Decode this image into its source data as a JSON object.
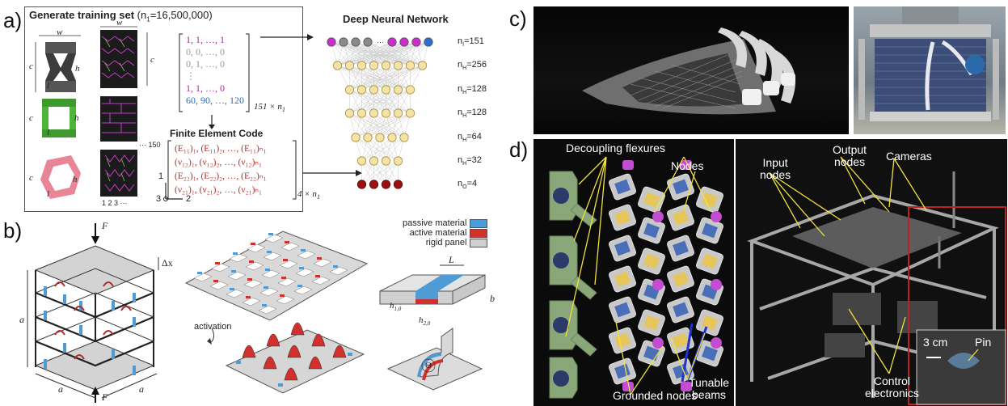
{
  "panel_labels": {
    "a": "a)",
    "b": "b)",
    "c": "c)",
    "d": "d)"
  },
  "panel_a": {
    "title": "Generate training set",
    "title_param": "(n",
    "title_param_sub": "1",
    "title_param_val": "=16,500,000)",
    "dim_w": "w",
    "dim_c": "c",
    "dim_h": "h",
    "dim_l": "l",
    "count_150": "··· 150",
    "axis_1": "1",
    "axis_2": "2",
    "axis_3": "3",
    "axis_123": "1 2 3 ···",
    "input_matrix_rows": [
      "1,  1,  …,  1",
      "0,  0,  …,  0",
      "0,  1,  …,  0",
      "⋮",
      "1,  1,  …,  0",
      "60, 90, …, 120"
    ],
    "input_matrix_size": "151 × n",
    "input_matrix_size_sub": "1",
    "fe_title": "Finite Element Code",
    "output_matrix_rows": [
      "(E₁₁)₁, (E₁₁)₂, …, (E₁₁)ₙ₁",
      "(ν₁₂)₁, (ν₁₂)₂, …, (ν₁₂)ₙ₁",
      "(E₂₂)₁, (E₂₂)₂, …, (E₂₂)ₙ₁",
      "(ν₂₁)₁, (ν₂₁)₂, …, (ν₂₁)ₙ₁"
    ],
    "output_matrix_size": "4 × n",
    "output_matrix_size_sub": "1",
    "dnn_title": "Deep Neural Network",
    "layers": [
      {
        "label": "n",
        "sub": "I",
        "val": "=151"
      },
      {
        "label": "n",
        "sub": "H",
        "val": "=256"
      },
      {
        "label": "n",
        "sub": "H",
        "val": "=128"
      },
      {
        "label": "n",
        "sub": "H",
        "val": "=128"
      },
      {
        "label": "n",
        "sub": "H",
        "val": "=64"
      },
      {
        "label": "n",
        "sub": "H",
        "val": "=32"
      },
      {
        "label": "n",
        "sub": "O",
        "val": "=4"
      }
    ]
  },
  "panel_b": {
    "force": "F",
    "dx": "Δx",
    "dim_a": "a",
    "activation": "activation",
    "legend": [
      {
        "label": "passive material",
        "color": "#4e9bd5"
      },
      {
        "label": "active material",
        "color": "#d12b2b"
      },
      {
        "label": "rigid panel",
        "color": "#cfcfcf"
      }
    ],
    "dim_L": "L",
    "dim_b": "b",
    "dim_h1": "h",
    "dim_h1_sub": "1,0",
    "dim_h2": "h",
    "dim_h2_sub": "2,0",
    "theta": "Θ"
  },
  "panel_d": {
    "labels": {
      "decoupling": "Decoupling flexures",
      "nodes": "Nodes",
      "input_nodes": "Input\nnodes",
      "output_nodes": "Output\nnodes",
      "cameras": "Cameras",
      "grounded": "Grounded nodes",
      "tunable": "Tunable\nbeams",
      "control": "Control\nelectronics",
      "scale": "3 cm",
      "pin": "Pin"
    }
  },
  "colors": {
    "magenta": "#cc2ecc",
    "blue": "#2b6fd1",
    "red": "#c0392b",
    "gold": "#e6c65a",
    "node_gray": "#8a8a8a",
    "node_red": "#9b1010"
  }
}
